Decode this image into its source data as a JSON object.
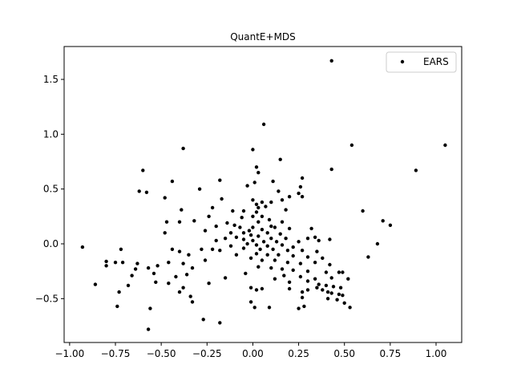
{
  "chart_data": {
    "type": "scatter",
    "title": "QuantE+MDS",
    "xlabel": "",
    "ylabel": "",
    "xlim": [
      -1.03,
      1.14
    ],
    "ylim": [
      -0.9,
      1.8
    ],
    "xticks": [
      -1.0,
      -0.75,
      -0.5,
      -0.25,
      0.0,
      0.25,
      0.5,
      0.75,
      1.0
    ],
    "xtick_labels": [
      "−1.00",
      "−0.75",
      "−0.50",
      "−0.25",
      "0.00",
      "0.25",
      "0.50",
      "0.75",
      "1.00"
    ],
    "yticks": [
      -0.5,
      0.0,
      0.5,
      1.0,
      1.5
    ],
    "ytick_labels": [
      "−0.5",
      "0.0",
      "0.5",
      "1.0",
      "1.5"
    ],
    "grid": false,
    "legend": {
      "position": "top-right"
    },
    "series": [
      {
        "name": "EARS",
        "color": "#000000",
        "points": [
          [
            0.43,
            1.67
          ],
          [
            0.06,
            1.09
          ],
          [
            1.05,
            0.9
          ],
          [
            0.54,
            0.9
          ],
          [
            0.0,
            0.86
          ],
          [
            -0.38,
            0.87
          ],
          [
            0.15,
            0.77
          ],
          [
            0.89,
            0.67
          ],
          [
            0.43,
            0.68
          ],
          [
            -0.6,
            0.67
          ],
          [
            0.02,
            0.7
          ],
          [
            0.03,
            0.65
          ],
          [
            0.27,
            0.6
          ],
          [
            0.11,
            0.57
          ],
          [
            0.01,
            0.56
          ],
          [
            -0.44,
            0.57
          ],
          [
            -0.18,
            0.58
          ],
          [
            -0.03,
            0.53
          ],
          [
            0.26,
            0.52
          ],
          [
            -0.29,
            0.5
          ],
          [
            -0.58,
            0.47
          ],
          [
            -0.62,
            0.48
          ],
          [
            0.14,
            0.48
          ],
          [
            0.25,
            0.46
          ],
          [
            -0.48,
            0.42
          ],
          [
            -0.17,
            0.41
          ],
          [
            0.2,
            0.43
          ],
          [
            0.27,
            0.43
          ],
          [
            0.05,
            0.38
          ],
          [
            0.1,
            0.38
          ],
          [
            0.16,
            0.4
          ],
          [
            0.0,
            0.4
          ],
          [
            0.02,
            0.36
          ],
          [
            0.07,
            0.34
          ],
          [
            0.03,
            0.33
          ],
          [
            -0.05,
            0.3
          ],
          [
            -0.11,
            0.3
          ],
          [
            -0.22,
            0.33
          ],
          [
            0.18,
            0.31
          ],
          [
            0.02,
            0.29
          ],
          [
            0.6,
            0.3
          ],
          [
            -0.39,
            0.31
          ],
          [
            0.05,
            0.25
          ],
          [
            0.0,
            0.25
          ],
          [
            -0.06,
            0.24
          ],
          [
            0.09,
            0.22
          ],
          [
            -0.24,
            0.25
          ],
          [
            0.71,
            0.21
          ],
          [
            0.16,
            0.2
          ],
          [
            -0.47,
            0.2
          ],
          [
            -0.4,
            0.2
          ],
          [
            -0.32,
            0.21
          ],
          [
            0.03,
            0.2
          ],
          [
            -0.14,
            0.19
          ],
          [
            -0.1,
            0.17
          ],
          [
            0.75,
            0.17
          ],
          [
            0.1,
            0.16
          ],
          [
            0.12,
            0.15
          ],
          [
            -0.2,
            0.16
          ],
          [
            0.0,
            0.15
          ],
          [
            -0.07,
            0.15
          ],
          [
            0.05,
            0.13
          ],
          [
            -0.02,
            0.12
          ],
          [
            0.2,
            0.14
          ],
          [
            0.32,
            0.14
          ],
          [
            -0.26,
            0.12
          ],
          [
            0.08,
            0.1
          ],
          [
            -0.12,
            0.1
          ],
          [
            -0.05,
            0.1
          ],
          [
            0.15,
            0.09
          ],
          [
            -0.48,
            0.1
          ],
          [
            -0.01,
            0.08
          ],
          [
            0.03,
            0.07
          ],
          [
            -0.09,
            0.06
          ],
          [
            -0.15,
            0.05
          ],
          [
            0.1,
            0.05
          ],
          [
            0.18,
            0.05
          ],
          [
            0.3,
            0.05
          ],
          [
            0.34,
            0.06
          ],
          [
            -0.05,
            0.04
          ],
          [
            0.0,
            0.03
          ],
          [
            0.06,
            0.02
          ],
          [
            0.13,
            0.02
          ],
          [
            0.25,
            0.02
          ],
          [
            0.36,
            0.03
          ],
          [
            0.42,
            0.04
          ],
          [
            -0.2,
            0.03
          ],
          [
            -0.03,
            0.0
          ],
          [
            0.02,
            -0.01
          ],
          [
            0.08,
            -0.02
          ],
          [
            0.16,
            -0.01
          ],
          [
            0.22,
            -0.03
          ],
          [
            0.68,
            0.0
          ],
          [
            -0.12,
            -0.02
          ],
          [
            -0.05,
            -0.04
          ],
          [
            0.04,
            -0.05
          ],
          [
            0.11,
            -0.05
          ],
          [
            0.19,
            -0.06
          ],
          [
            0.27,
            -0.06
          ],
          [
            0.35,
            -0.07
          ],
          [
            -0.22,
            -0.05
          ],
          [
            -0.93,
            -0.03
          ],
          [
            -0.44,
            -0.05
          ],
          [
            -0.4,
            -0.07
          ],
          [
            -0.28,
            -0.05
          ],
          [
            -0.18,
            -0.06
          ],
          [
            0.02,
            -0.09
          ],
          [
            0.08,
            -0.1
          ],
          [
            0.14,
            -0.1
          ],
          [
            0.22,
            -0.11
          ],
          [
            0.3,
            -0.12
          ],
          [
            0.38,
            -0.13
          ],
          [
            0.63,
            -0.12
          ],
          [
            -0.72,
            -0.05
          ],
          [
            -0.35,
            -0.1
          ],
          [
            -0.09,
            -0.1
          ],
          [
            -0.01,
            -0.13
          ],
          [
            0.05,
            -0.15
          ],
          [
            0.12,
            -0.15
          ],
          [
            0.19,
            -0.17
          ],
          [
            0.26,
            -0.18
          ],
          [
            0.34,
            -0.17
          ],
          [
            0.42,
            -0.19
          ],
          [
            -0.46,
            -0.17
          ],
          [
            -0.38,
            -0.18
          ],
          [
            -0.26,
            -0.15
          ],
          [
            -0.52,
            -0.2
          ],
          [
            -0.63,
            -0.18
          ],
          [
            -0.75,
            -0.17
          ],
          [
            -0.8,
            -0.16
          ],
          [
            0.03,
            -0.21
          ],
          [
            0.1,
            -0.22
          ],
          [
            0.16,
            -0.23
          ],
          [
            0.22,
            -0.24
          ],
          [
            0.3,
            -0.25
          ],
          [
            0.4,
            -0.26
          ],
          [
            0.47,
            -0.26
          ],
          [
            0.49,
            -0.26
          ],
          [
            -0.33,
            -0.22
          ],
          [
            -0.57,
            -0.22
          ],
          [
            -0.64,
            -0.23
          ],
          [
            -0.8,
            -0.2
          ],
          [
            -0.71,
            -0.17
          ],
          [
            0.17,
            -0.29
          ],
          [
            0.26,
            -0.3
          ],
          [
            0.34,
            -0.32
          ],
          [
            0.43,
            -0.31
          ],
          [
            0.52,
            -0.32
          ],
          [
            -0.04,
            -0.27
          ],
          [
            -0.36,
            -0.28
          ],
          [
            -0.54,
            -0.27
          ],
          [
            -0.66,
            -0.29
          ],
          [
            -0.42,
            -0.3
          ],
          [
            -0.15,
            -0.31
          ],
          [
            0.12,
            -0.32
          ],
          [
            0.2,
            -0.35
          ],
          [
            0.3,
            -0.34
          ],
          [
            0.36,
            -0.37
          ],
          [
            0.4,
            -0.38
          ],
          [
            0.44,
            -0.39
          ],
          [
            0.48,
            -0.4
          ],
          [
            0.38,
            -0.42
          ],
          [
            0.41,
            -0.44
          ],
          [
            0.43,
            -0.45
          ],
          [
            0.47,
            -0.46
          ],
          [
            0.49,
            -0.47
          ],
          [
            0.35,
            -0.4
          ],
          [
            0.3,
            -0.42
          ],
          [
            0.27,
            -0.44
          ],
          [
            0.2,
            -0.41
          ],
          [
            0.05,
            -0.41
          ],
          [
            0.02,
            -0.42
          ],
          [
            -0.01,
            -0.4
          ],
          [
            -0.46,
            -0.36
          ],
          [
            -0.53,
            -0.35
          ],
          [
            -0.68,
            -0.38
          ],
          [
            -0.86,
            -0.37
          ],
          [
            -0.73,
            -0.44
          ],
          [
            -0.38,
            -0.4
          ],
          [
            -0.4,
            -0.44
          ],
          [
            -0.34,
            -0.48
          ],
          [
            -0.24,
            -0.36
          ],
          [
            0.27,
            -0.49
          ],
          [
            0.41,
            -0.5
          ],
          [
            0.46,
            -0.51
          ],
          [
            0.5,
            -0.54
          ],
          [
            0.53,
            -0.58
          ],
          [
            -0.33,
            -0.53
          ],
          [
            -0.01,
            -0.53
          ],
          [
            0.01,
            -0.58
          ],
          [
            0.09,
            -0.58
          ],
          [
            0.25,
            -0.59
          ],
          [
            0.28,
            -0.57
          ],
          [
            -0.74,
            -0.57
          ],
          [
            -0.56,
            -0.59
          ],
          [
            -0.27,
            -0.69
          ],
          [
            -0.18,
            -0.72
          ],
          [
            -0.57,
            -0.78
          ]
        ]
      }
    ]
  }
}
